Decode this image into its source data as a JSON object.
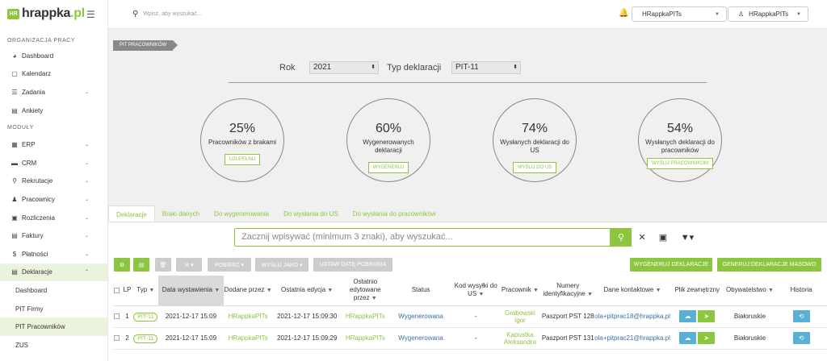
{
  "sidebar": {
    "logo_mark": "HR",
    "logo_hr": "hrappka",
    "logo_dot": ".pl",
    "section_org": "ORGANIZACJA PRACY",
    "org_items": [
      {
        "label": "Dashboard",
        "icon": "dashboard-icon"
      },
      {
        "label": "Kalendarz",
        "icon": "calendar-icon"
      },
      {
        "label": "Zadania",
        "icon": "tasks-icon"
      },
      {
        "label": "Ankiety",
        "icon": "survey-icon"
      }
    ],
    "section_mod": "MODUŁY",
    "mod_items": [
      {
        "label": "ERP"
      },
      {
        "label": "CRM"
      },
      {
        "label": "Rekrutacje"
      },
      {
        "label": "Pracownicy"
      },
      {
        "label": "Rozliczenia"
      },
      {
        "label": "Faktury"
      },
      {
        "label": "Płatności"
      },
      {
        "label": "Deklaracje"
      }
    ],
    "sub_items": [
      {
        "label": "Dashboard"
      },
      {
        "label": "PIT Firmy"
      },
      {
        "label": "PIT Pracowników"
      },
      {
        "label": "ZUS"
      }
    ]
  },
  "topbar": {
    "search_placeholder": "Wpisz, aby wyszukać...",
    "company_select": "HRappkaPITs",
    "user_select": "HRappkaPITs"
  },
  "breadcrumb": "PIT PRACOWNIKÓW",
  "filters": {
    "year_label": "Rok",
    "year_value": "2021",
    "type_label": "Typ deklaracji",
    "type_value": "PIT-11"
  },
  "stats": [
    {
      "pct": "25%",
      "desc": "Pracowników z brakami",
      "button": "UZUPEŁNIJ"
    },
    {
      "pct": "60%",
      "desc": "Wygenerowanych deklaracji",
      "button": "WYGENERUJ"
    },
    {
      "pct": "74%",
      "desc": "Wysłanych deklaracji do US",
      "button": "WYŚLIJ DO US"
    },
    {
      "pct": "54%",
      "desc": "Wysłanych deklaracji do pracowników",
      "button": "WYŚLIJ PRACOWNIKOM"
    }
  ],
  "tabs": [
    "Deklaracje",
    "Braki danych",
    "Do wygenerowania",
    "Do wysłania do US",
    "Do wysłania do pracowników"
  ],
  "search": {
    "placeholder": "Zacznij wpisywać (minimum 3 znaki), aby wyszukać..."
  },
  "toolbar": {
    "pobierz": "POBIERZ ▾",
    "wyslij_jako": "WYŚLIJ JAKO ▾",
    "ustaw_date": "USTAW DATĘ POBRANIA",
    "generuj": "WYGENERUJ DEKLARACJE",
    "generuj_masowo": "GENERUJ DEKLARACJE MASOWO"
  },
  "table": {
    "headers": {
      "lp": "LP",
      "typ": "Typ",
      "data": "Data wystawienia",
      "dodane": "Dodane przez",
      "edycja": "Ostatnia edycja",
      "edytowane": "Ostatnio edytowane przez",
      "status": "Status",
      "kod": "Kod wysyłki do US",
      "pracownik": "Pracownik",
      "numery": "Numery identyfikacyjne",
      "kontakt": "Dane kontaktowe",
      "plik": "Plik zewnętrzny",
      "obyw": "Obywatelstwo",
      "hist": "Historia"
    },
    "rows": [
      {
        "lp": "1",
        "typ": "PIT-11",
        "data": "2021-12-17 15:09",
        "dodane": "HRappkaPITs",
        "edycja": "2021-12-17 15:09:30",
        "edytowane": "HRappkaPITs",
        "status": "Wygenerowana",
        "kod": "-",
        "pracownik": "Grabowski Igor",
        "numery": "Paszport PST 128",
        "kontakt": "ola+pitprac18@hrappka.pl",
        "obyw": "Białoruskie"
      },
      {
        "lp": "2",
        "typ": "PIT-11",
        "data": "2021-12-17 15:09",
        "dodane": "HRappkaPITs",
        "edycja": "2021-12-17 15:09:29",
        "edytowane": "HRappkaPITs",
        "status": "Wygenerowana",
        "kod": "-",
        "pracownik": "Kapustka Aleksandra",
        "numery": "Paszport PST 131",
        "kontakt": "ola+pitprac21@hrappka.pl",
        "obyw": "Białoruskie"
      }
    ]
  },
  "colors": {
    "accent": "#8cc63f",
    "info": "#5ab0d4"
  }
}
